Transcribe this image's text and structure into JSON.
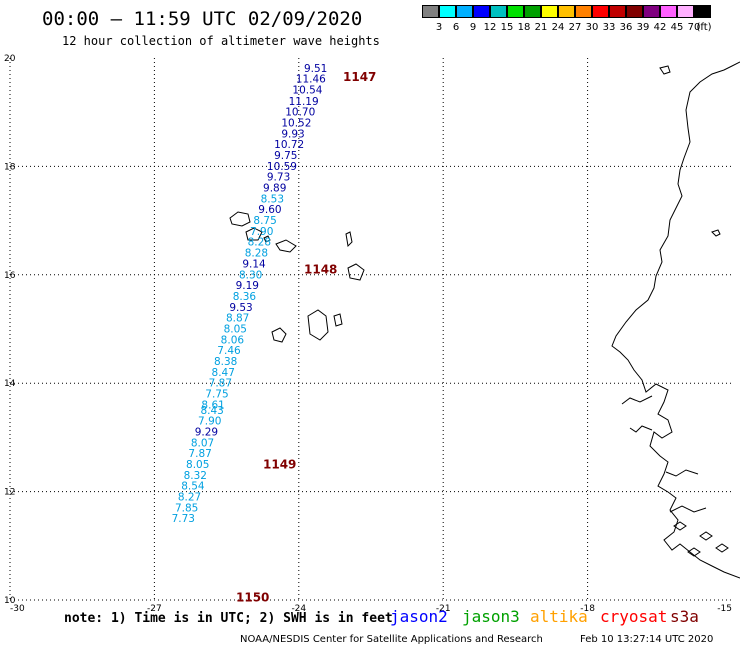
{
  "header": {
    "title": "00:00 – 11:59 UTC 02/09/2020",
    "subtitle": "12 hour collection of altimeter wave heights"
  },
  "colorbar": {
    "colors": [
      "#808080",
      "#00ffff",
      "#00b0ff",
      "#0000ff",
      "#00c0c0",
      "#00e000",
      "#00a000",
      "#ffff00",
      "#ffc000",
      "#ff8000",
      "#ff0000",
      "#c00000",
      "#800000",
      "#800080",
      "#ff60ff",
      "#ffb0ff",
      "#000000"
    ],
    "labels": [
      "3",
      "6",
      "9",
      "12",
      "15",
      "18",
      "21",
      "24",
      "27",
      "30",
      "33",
      "36",
      "39",
      "42",
      "45",
      "70",
      "(ft)"
    ]
  },
  "axes": {
    "x_ticks": [
      "-30",
      "-27",
      "-24",
      "-21",
      "-18",
      "-15"
    ],
    "y_ticks": [
      "20",
      "18",
      "16",
      "14",
      "12",
      "10"
    ]
  },
  "colors": {
    "dark_blue": "#0000a0",
    "light_blue": "#00a0e0",
    "orbit_label": "#800000",
    "coast": "#000000"
  },
  "orbits": [
    {
      "label": "1147",
      "lat": 19.65
    },
    {
      "label": "1148",
      "lat": 16.1
    },
    {
      "label": "1149",
      "lat": 12.5
    },
    {
      "label": "1150",
      "lat": 10.05
    }
  ],
  "observations": [
    {
      "v": "9.51",
      "c": "dark",
      "lat": 19.82,
      "lon": -23.65
    },
    {
      "v": "11.46",
      "c": "dark",
      "lat": 19.62,
      "lon": -23.75
    },
    {
      "v": "10.54",
      "c": "dark",
      "lat": 19.42,
      "lon": -23.82
    },
    {
      "v": "11.19",
      "c": "dark",
      "lat": 19.21,
      "lon": -23.9
    },
    {
      "v": "10.70",
      "c": "dark",
      "lat": 19.01,
      "lon": -23.97
    },
    {
      "v": "10.52",
      "c": "dark",
      "lat": 18.81,
      "lon": -24.05
    },
    {
      "v": "9.93",
      "c": "dark",
      "lat": 18.61,
      "lon": -24.12
    },
    {
      "v": "10.72",
      "c": "dark",
      "lat": 18.41,
      "lon": -24.2
    },
    {
      "v": "9.75",
      "c": "dark",
      "lat": 18.21,
      "lon": -24.27
    },
    {
      "v": "10.59",
      "c": "dark",
      "lat": 18.01,
      "lon": -24.35
    },
    {
      "v": "9.73",
      "c": "dark",
      "lat": 17.81,
      "lon": -24.42
    },
    {
      "v": "9.89",
      "c": "dark",
      "lat": 17.61,
      "lon": -24.5
    },
    {
      "v": "8.53",
      "c": "light",
      "lat": 17.41,
      "lon": -24.55
    },
    {
      "v": "9.60",
      "c": "dark",
      "lat": 17.21,
      "lon": -24.6
    },
    {
      "v": "8.75",
      "c": "light",
      "lat": 17.01,
      "lon": -24.7
    },
    {
      "v": "7.90",
      "c": "light",
      "lat": 16.81,
      "lon": -24.77
    },
    {
      "v": "8.28",
      "c": "light",
      "lat": 16.61,
      "lon": -24.82
    },
    {
      "v": "8.28",
      "c": "light",
      "lat": 16.41,
      "lon": -24.88
    },
    {
      "v": "9.14",
      "c": "dark",
      "lat": 16.21,
      "lon": -24.93
    },
    {
      "v": "8.30",
      "c": "light",
      "lat": 16.01,
      "lon": -25.0
    },
    {
      "v": "9.19",
      "c": "dark",
      "lat": 15.81,
      "lon": -25.07
    },
    {
      "v": "8.36",
      "c": "light",
      "lat": 15.61,
      "lon": -25.13
    },
    {
      "v": "9.53",
      "c": "dark",
      "lat": 15.41,
      "lon": -25.2
    },
    {
      "v": "8.87",
      "c": "light",
      "lat": 15.21,
      "lon": -25.27
    },
    {
      "v": "8.05",
      "c": "light",
      "lat": 15.01,
      "lon": -25.32
    },
    {
      "v": "8.06",
      "c": "light",
      "lat": 14.81,
      "lon": -25.38
    },
    {
      "v": "7.46",
      "c": "light",
      "lat": 14.61,
      "lon": -25.45
    },
    {
      "v": "8.38",
      "c": "light",
      "lat": 14.41,
      "lon": -25.52
    },
    {
      "v": "8.47",
      "c": "light",
      "lat": 14.21,
      "lon": -25.57
    },
    {
      "v": "7.87",
      "c": "light",
      "lat": 14.01,
      "lon": -25.63
    },
    {
      "v": "7.75",
      "c": "light",
      "lat": 13.81,
      "lon": -25.7
    },
    {
      "v": "8.61",
      "c": "light",
      "lat": 13.61,
      "lon": -25.78
    },
    {
      "v": "8.43",
      "c": "light",
      "lat": 13.51,
      "lon": -25.8
    },
    {
      "v": "7.90",
      "c": "light",
      "lat": 13.31,
      "lon": -25.85
    },
    {
      "v": "9.29",
      "c": "dark",
      "lat": 13.11,
      "lon": -25.92
    },
    {
      "v": "8.07",
      "c": "light",
      "lat": 12.91,
      "lon": -26.0
    },
    {
      "v": "7.87",
      "c": "light",
      "lat": 12.71,
      "lon": -26.05
    },
    {
      "v": "8.05",
      "c": "light",
      "lat": 12.51,
      "lon": -26.1
    },
    {
      "v": "8.32",
      "c": "light",
      "lat": 12.31,
      "lon": -26.15
    },
    {
      "v": "8.54",
      "c": "light",
      "lat": 12.11,
      "lon": -26.2
    },
    {
      "v": "8.27",
      "c": "light",
      "lat": 11.91,
      "lon": -26.27
    },
    {
      "v": "7.85",
      "c": "light",
      "lat": 11.71,
      "lon": -26.33
    },
    {
      "v": "7.73",
      "c": "light",
      "lat": 11.51,
      "lon": -26.4
    }
  ],
  "footer": {
    "note": "note: 1) Time is in UTC; 2) SWH is in feet",
    "satellites": [
      {
        "name": "jason2",
        "color": "#0000ff"
      },
      {
        "name": "jason3",
        "color": "#00a000"
      },
      {
        "name": "altika",
        "color": "#ffa000"
      },
      {
        "name": "cryosat",
        "color": "#ff0000"
      },
      {
        "name": "s3a",
        "color": "#800000"
      }
    ],
    "credit": "NOAA/NESDIS Center for Satellite Applications and Research",
    "timestamp": "Feb 10 13:27:14 UTC 2020"
  }
}
